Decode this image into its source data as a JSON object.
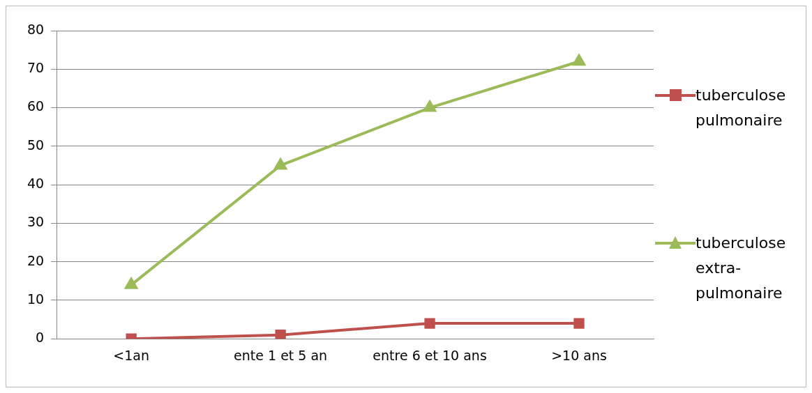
{
  "chart_data": {
    "type": "line",
    "categories": [
      "<1an",
      "ente 1 et 5 an",
      "entre 6 et 10 ans",
      ">10 ans"
    ],
    "series": [
      {
        "name": "tuberculose pulmonaire",
        "color": "#c0504d",
        "marker": "square",
        "values": [
          0,
          1,
          4,
          4
        ]
      },
      {
        "name": "tuberculose extra-pulmonaire",
        "color": "#9bbb59",
        "marker": "triangle",
        "values": [
          14,
          45,
          60,
          72
        ]
      }
    ],
    "ylim": [
      0,
      80
    ],
    "yticks": [
      0,
      10,
      20,
      30,
      40,
      50,
      60,
      70,
      80
    ],
    "grid": "y",
    "legend": "right"
  }
}
